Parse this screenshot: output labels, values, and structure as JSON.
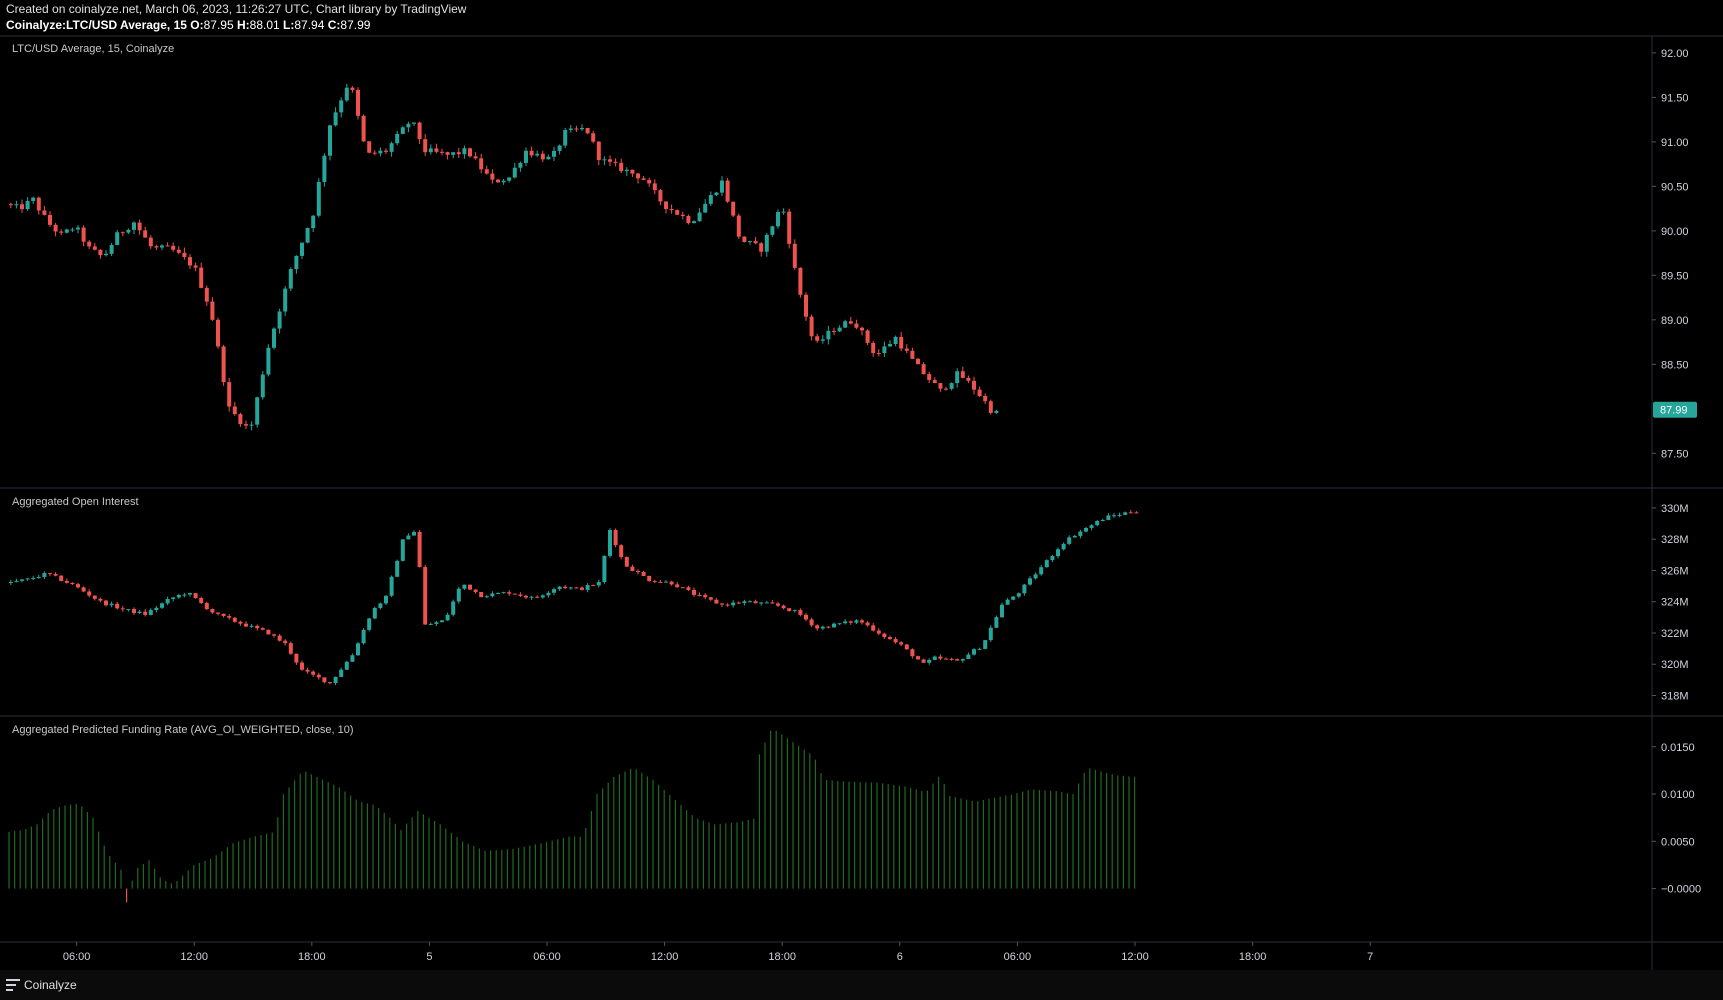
{
  "header": {
    "line1": "Created on coinalyze.net, March 06, 2023, 11:26:27 UTC, Chart library by TradingView",
    "symbol": "Coinalyze:LTC/USD Average, 15",
    "open_label": "O:",
    "open": "87.95",
    "high_label": "H:",
    "high": "88.01",
    "low_label": "L:",
    "low": "87.94",
    "close_label": "C:",
    "close": "87.99"
  },
  "footer": {
    "brand": "Coinalyze"
  },
  "colors": {
    "up": "#26a69a",
    "down": "#ef5350",
    "funding": "#1e6b1e",
    "border": "#2a2e39",
    "text": "#d1d4dc",
    "price_tag": "#26a69a"
  },
  "chart_data": [
    {
      "type": "candlestick",
      "title": "LTC/USD Average, 15, Coinalyze",
      "ylim": [
        87.2,
        92.1
      ],
      "yticks": [
        "92.00",
        "91.50",
        "91.00",
        "90.50",
        "90.00",
        "89.50",
        "89.00",
        "88.50",
        "87.50"
      ],
      "last_price_label": "87.99",
      "anchors": [
        [
          0,
          90.3
        ],
        [
          10,
          90.25
        ],
        [
          20,
          90.35
        ],
        [
          30,
          90.1
        ],
        [
          40,
          89.95
        ],
        [
          50,
          90.05
        ],
        [
          60,
          89.8
        ],
        [
          70,
          89.7
        ],
        [
          80,
          89.95
        ],
        [
          92,
          90.1
        ],
        [
          105,
          89.8
        ],
        [
          118,
          89.8
        ],
        [
          135,
          89.6
        ],
        [
          147,
          89.1
        ],
        [
          160,
          88.0
        ],
        [
          175,
          87.75
        ],
        [
          188,
          88.7
        ],
        [
          205,
          89.6
        ],
        [
          220,
          90.2
        ],
        [
          232,
          91.2
        ],
        [
          246,
          91.7
        ],
        [
          258,
          90.85
        ],
        [
          272,
          90.9
        ],
        [
          290,
          91.25
        ],
        [
          300,
          90.9
        ],
        [
          316,
          90.85
        ],
        [
          330,
          90.9
        ],
        [
          348,
          90.55
        ],
        [
          360,
          90.6
        ],
        [
          372,
          90.9
        ],
        [
          390,
          90.8
        ],
        [
          400,
          91.1
        ],
        [
          415,
          91.15
        ],
        [
          425,
          90.8
        ],
        [
          440,
          90.7
        ],
        [
          455,
          90.6
        ],
        [
          470,
          90.3
        ],
        [
          490,
          90.1
        ],
        [
          512,
          90.55
        ],
        [
          525,
          89.9
        ],
        [
          540,
          89.8
        ],
        [
          555,
          90.3
        ],
        [
          566,
          89.4
        ],
        [
          578,
          88.7
        ],
        [
          592,
          88.9
        ],
        [
          606,
          89.0
        ],
        [
          622,
          88.6
        ],
        [
          636,
          88.8
        ],
        [
          650,
          88.5
        ],
        [
          668,
          88.2
        ],
        [
          681,
          88.4
        ],
        [
          694,
          88.2
        ],
        [
          706,
          87.95
        ]
      ]
    },
    {
      "type": "candlestick",
      "title": "Aggregated Open Interest",
      "ylim": [
        317.2,
        330.7
      ],
      "yticks": [
        "330M",
        "328M",
        "326M",
        "324M",
        "322M",
        "320M",
        "318M"
      ],
      "anchors": [
        [
          0,
          325.2
        ],
        [
          15,
          325.4
        ],
        [
          30,
          325.8
        ],
        [
          50,
          325.0
        ],
        [
          68,
          324.0
        ],
        [
          85,
          323.5
        ],
        [
          100,
          323.2
        ],
        [
          118,
          324.2
        ],
        [
          130,
          324.6
        ],
        [
          150,
          323.2
        ],
        [
          172,
          322.5
        ],
        [
          188,
          322.0
        ],
        [
          200,
          321.3
        ],
        [
          212,
          319.6
        ],
        [
          232,
          318.8
        ],
        [
          248,
          320.6
        ],
        [
          262,
          323.4
        ],
        [
          272,
          324.3
        ],
        [
          285,
          328.2
        ],
        [
          292,
          328.5
        ],
        [
          296,
          326.2
        ],
        [
          300,
          322.5
        ],
        [
          314,
          322.8
        ],
        [
          326,
          325.2
        ],
        [
          340,
          324.4
        ],
        [
          360,
          324.6
        ],
        [
          378,
          324.2
        ],
        [
          395,
          325.0
        ],
        [
          410,
          324.8
        ],
        [
          424,
          325.2
        ],
        [
          432,
          328.6
        ],
        [
          442,
          326.4
        ],
        [
          460,
          325.4
        ],
        [
          476,
          325.2
        ],
        [
          494,
          324.4
        ],
        [
          512,
          323.8
        ],
        [
          528,
          324.0
        ],
        [
          550,
          323.8
        ],
        [
          566,
          323.3
        ],
        [
          580,
          322.3
        ],
        [
          596,
          322.6
        ],
        [
          610,
          322.8
        ],
        [
          628,
          321.8
        ],
        [
          640,
          321.2
        ],
        [
          656,
          320.0
        ],
        [
          664,
          320.4
        ],
        [
          680,
          320.2
        ],
        [
          698,
          321.2
        ],
        [
          712,
          323.8
        ],
        [
          724,
          324.6
        ],
        [
          740,
          326.2
        ],
        [
          756,
          327.8
        ],
        [
          764,
          328.3
        ],
        [
          786,
          329.4
        ],
        [
          806,
          329.8
        ]
      ]
    },
    {
      "type": "bar",
      "title": "Aggregated Predicted Funding Rate (AVG_OI_WEIGHTED, close, 10)",
      "ylim": [
        -0.0048,
        0.0173
      ],
      "yticks": [
        "0.0150",
        "0.0100",
        "0.0050",
        "−0.0000"
      ],
      "anchors": [
        [
          0,
          0.006
        ],
        [
          10,
          0.0062
        ],
        [
          20,
          0.0068
        ],
        [
          30,
          0.0083
        ],
        [
          40,
          0.0088
        ],
        [
          50,
          0.009
        ],
        [
          60,
          0.0075
        ],
        [
          70,
          0.0038
        ],
        [
          80,
          0.002
        ],
        [
          82,
          -0.0026
        ],
        [
          90,
          0.002
        ],
        [
          100,
          0.003
        ],
        [
          108,
          0.0012
        ],
        [
          115,
          0.0005
        ],
        [
          120,
          0.0008
        ],
        [
          132,
          0.0025
        ],
        [
          145,
          0.0032
        ],
        [
          160,
          0.0048
        ],
        [
          175,
          0.0055
        ],
        [
          190,
          0.006
        ],
        [
          195,
          0.0098
        ],
        [
          210,
          0.0125
        ],
        [
          220,
          0.0118
        ],
        [
          235,
          0.0108
        ],
        [
          250,
          0.0092
        ],
        [
          262,
          0.0088
        ],
        [
          272,
          0.0075
        ],
        [
          280,
          0.0062
        ],
        [
          292,
          0.0082
        ],
        [
          308,
          0.0068
        ],
        [
          324,
          0.005
        ],
        [
          340,
          0.004
        ],
        [
          360,
          0.0042
        ],
        [
          380,
          0.0048
        ],
        [
          400,
          0.0055
        ],
        [
          410,
          0.0055
        ],
        [
          420,
          0.01
        ],
        [
          432,
          0.0118
        ],
        [
          446,
          0.0128
        ],
        [
          460,
          0.0115
        ],
        [
          475,
          0.0095
        ],
        [
          490,
          0.0075
        ],
        [
          504,
          0.0068
        ],
        [
          520,
          0.007
        ],
        [
          535,
          0.0075
        ],
        [
          536,
          0.0142
        ],
        [
          545,
          0.017
        ],
        [
          560,
          0.0155
        ],
        [
          575,
          0.014
        ],
        [
          582,
          0.0115
        ],
        [
          600,
          0.0113
        ],
        [
          620,
          0.0112
        ],
        [
          640,
          0.0108
        ],
        [
          655,
          0.0102
        ],
        [
          665,
          0.012
        ],
        [
          672,
          0.0098
        ],
        [
          690,
          0.0092
        ],
        [
          700,
          0.0095
        ],
        [
          718,
          0.01
        ],
        [
          730,
          0.0105
        ],
        [
          748,
          0.0103
        ],
        [
          760,
          0.01
        ],
        [
          770,
          0.0128
        ],
        [
          790,
          0.012
        ],
        [
          806,
          0.0118
        ]
      ]
    }
  ],
  "x_axis": {
    "labels": [
      {
        "text": "06:00",
        "bar": 49
      },
      {
        "text": "12:00",
        "bar": 133
      },
      {
        "text": "18:00",
        "bar": 217
      },
      {
        "text": "5",
        "bar": 301
      },
      {
        "text": "06:00",
        "bar": 385
      },
      {
        "text": "12:00",
        "bar": 469
      },
      {
        "text": "18:00",
        "bar": 553
      },
      {
        "text": "6",
        "bar": 637
      },
      {
        "text": "06:00",
        "bar": 721
      },
      {
        "text": "12:00",
        "bar": 805
      },
      {
        "text": "18:00",
        "bar": 889
      },
      {
        "text": "7",
        "bar": 973
      }
    ]
  }
}
